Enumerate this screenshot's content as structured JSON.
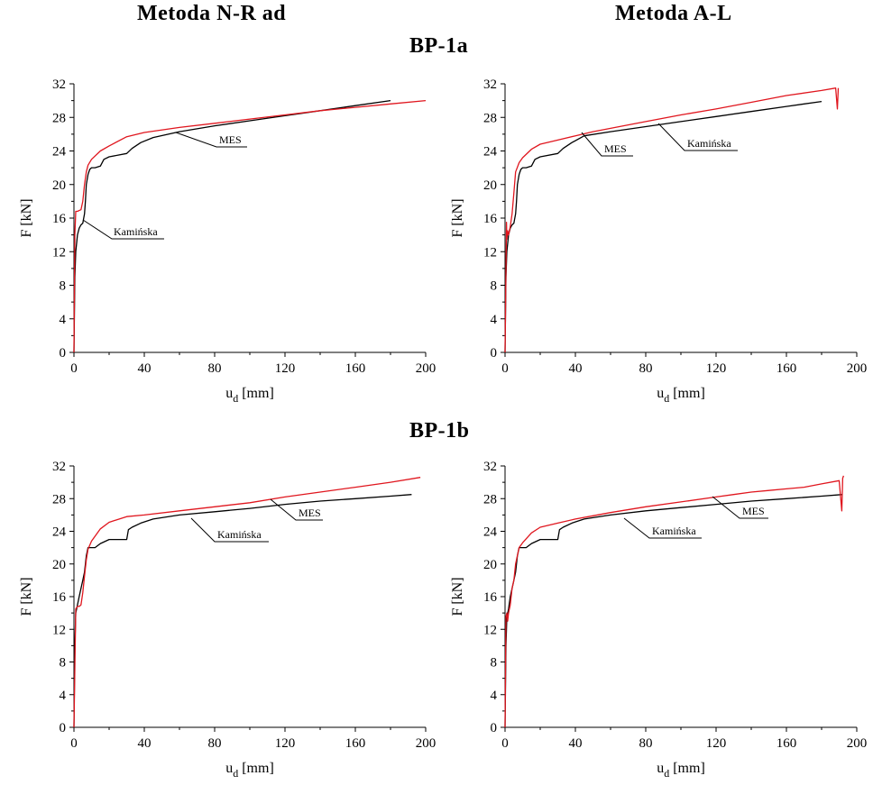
{
  "headers": {
    "left": "Metoda N-R ad",
    "right": "Metoda A-L"
  },
  "groups": [
    {
      "title": "BP-1a"
    },
    {
      "title": "BP-1b"
    }
  ],
  "colors": {
    "mes": "#e0161e",
    "kaminska": "#000000"
  },
  "chart_data": [
    {
      "type": "line",
      "group": "BP-1a",
      "method": "Metoda N-R ad",
      "xlabel_main": "u",
      "xlabel_sub": "d",
      "xlabel_unit": " [mm]",
      "ylabel": "F [kN]",
      "xlim": [
        0,
        200
      ],
      "ylim": [
        0,
        32
      ],
      "xticks": [
        "0",
        "40",
        "80",
        "120",
        "160",
        "200"
      ],
      "yticks": [
        "0",
        "4",
        "8",
        "12",
        "16",
        "20",
        "24",
        "28",
        "32"
      ],
      "series": [
        {
          "name": "Kamińska",
          "color": "#000000",
          "x": [
            0,
            0.5,
            1,
            2,
            3,
            4,
            5,
            6,
            6.5,
            7,
            8,
            9,
            10,
            12,
            15,
            17,
            20,
            30,
            33,
            38,
            45,
            60,
            80,
            100,
            120,
            140,
            160,
            180
          ],
          "y": [
            0,
            9,
            12,
            14,
            14.8,
            15.2,
            15.4,
            16.5,
            18,
            20,
            21.2,
            21.8,
            22,
            22,
            22.2,
            23,
            23.3,
            23.7,
            24.3,
            25,
            25.6,
            26.3,
            27,
            27.6,
            28.2,
            28.8,
            29.4,
            30
          ]
        },
        {
          "name": "MES",
          "color": "#e0161e",
          "x": [
            0,
            0.5,
            1,
            2,
            3,
            4,
            5,
            6,
            7,
            8,
            10,
            15,
            20,
            30,
            40,
            60,
            80,
            100,
            120,
            140,
            160,
            180,
            200
          ],
          "y": [
            0,
            14,
            16.8,
            16.8,
            16.9,
            17,
            18,
            20,
            21.5,
            22.3,
            23,
            24,
            24.6,
            25.7,
            26.2,
            26.8,
            27.3,
            27.8,
            28.3,
            28.8,
            29.2,
            29.6,
            30
          ]
        }
      ],
      "annotations": [
        "MES",
        "Kamińska"
      ]
    },
    {
      "type": "line",
      "group": "BP-1a",
      "method": "Metoda A-L",
      "xlabel_main": "u",
      "xlabel_sub": "d",
      "xlabel_unit": " [mm]",
      "ylabel": "F [kN]",
      "xlim": [
        0,
        200
      ],
      "ylim": [
        0,
        32
      ],
      "xticks": [
        "0",
        "40",
        "80",
        "120",
        "160",
        "200"
      ],
      "yticks": [
        "0",
        "4",
        "8",
        "12",
        "16",
        "20",
        "24",
        "28",
        "32"
      ],
      "series": [
        {
          "name": "Kamińska",
          "color": "#000000",
          "x": [
            0,
            0.5,
            1,
            2,
            3,
            4,
            5,
            6,
            6.5,
            7,
            8,
            9,
            10,
            12,
            15,
            17,
            20,
            30,
            33,
            38,
            45,
            60,
            80,
            100,
            120,
            140,
            160,
            180
          ],
          "y": [
            0,
            9,
            12,
            14,
            14.8,
            15.2,
            15.4,
            16.5,
            18,
            20,
            21.2,
            21.8,
            22,
            22,
            22.2,
            23,
            23.3,
            23.7,
            24.3,
            25,
            25.8,
            26.3,
            26.9,
            27.5,
            28.1,
            28.7,
            29.3,
            29.9
          ]
        },
        {
          "name": "MES",
          "color": "#e0161e",
          "x": [
            0,
            0.8,
            1,
            1.5,
            2,
            3,
            4,
            5,
            6,
            8,
            10,
            15,
            20,
            30,
            40,
            50,
            60,
            80,
            100,
            120,
            140,
            160,
            180,
            188,
            189,
            189.5
          ],
          "y": [
            0,
            15.5,
            13.5,
            14.5,
            14,
            15,
            16.5,
            19,
            21.5,
            22.6,
            23.2,
            24.2,
            24.8,
            25.3,
            25.8,
            26.3,
            26.7,
            27.5,
            28.3,
            29,
            29.8,
            30.6,
            31.2,
            31.5,
            29,
            31.5
          ]
        }
      ],
      "annotations": [
        "MES",
        "Kamińska"
      ]
    },
    {
      "type": "line",
      "group": "BP-1b",
      "method": "Metoda N-R ad",
      "xlabel_main": "u",
      "xlabel_sub": "d",
      "xlabel_unit": " [mm]",
      "ylabel": "F [kN]",
      "xlim": [
        0,
        200
      ],
      "ylim": [
        0,
        32
      ],
      "xticks": [
        "0",
        "40",
        "80",
        "120",
        "160",
        "200"
      ],
      "yticks": [
        "0",
        "4",
        "8",
        "12",
        "16",
        "20",
        "24",
        "28",
        "32"
      ],
      "series": [
        {
          "name": "Kamińska",
          "color": "#000000",
          "x": [
            0,
            0.5,
            1,
            2,
            3,
            4,
            5,
            6,
            7,
            8,
            10,
            12,
            15,
            20,
            25,
            30,
            31,
            33,
            38,
            45,
            60,
            80,
            100,
            120,
            140,
            160,
            180,
            192
          ],
          "y": [
            0,
            10,
            14,
            15,
            16,
            17,
            18,
            19,
            21,
            22,
            22,
            22,
            22.5,
            23,
            23,
            23,
            24.2,
            24.5,
            25,
            25.5,
            26,
            26.4,
            26.8,
            27.3,
            27.7,
            28,
            28.3,
            28.5
          ]
        },
        {
          "name": "MES",
          "color": "#e0161e",
          "x": [
            0,
            1,
            2,
            3,
            4,
            5,
            6,
            7,
            8,
            10,
            15,
            20,
            30,
            40,
            60,
            80,
            100,
            120,
            140,
            160,
            180,
            197
          ],
          "y": [
            0,
            14.5,
            14.8,
            14.8,
            15,
            16.5,
            18.5,
            20.5,
            21.8,
            22.8,
            24.3,
            25.1,
            25.8,
            26,
            26.5,
            27,
            27.5,
            28.2,
            28.8,
            29.4,
            30,
            30.6
          ]
        }
      ],
      "annotations": [
        "MES",
        "Kamińska"
      ]
    },
    {
      "type": "line",
      "group": "BP-1b",
      "method": "Metoda A-L",
      "xlabel_main": "u",
      "xlabel_sub": "d",
      "xlabel_unit": " [mm]",
      "ylabel": "F [kN]",
      "xlim": [
        0,
        200
      ],
      "ylim": [
        0,
        32
      ],
      "xticks": [
        "0",
        "40",
        "80",
        "120",
        "160",
        "200"
      ],
      "yticks": [
        "0",
        "4",
        "8",
        "12",
        "16",
        "20",
        "24",
        "28",
        "32"
      ],
      "series": [
        {
          "name": "Kamińska",
          "color": "#000000",
          "x": [
            0,
            0.5,
            1,
            2,
            3,
            4,
            5,
            6,
            7,
            8,
            10,
            12,
            15,
            20,
            25,
            30,
            31,
            33,
            38,
            45,
            60,
            80,
            100,
            120,
            140,
            160,
            180,
            192
          ],
          "y": [
            0,
            10,
            13.5,
            14.5,
            16,
            17,
            18,
            19,
            21,
            22,
            22,
            22,
            22.5,
            23,
            23,
            23,
            24.2,
            24.5,
            25,
            25.5,
            26,
            26.5,
            26.9,
            27.3,
            27.7,
            28,
            28.3,
            28.5
          ]
        },
        {
          "name": "MES",
          "color": "#e0161e",
          "x": [
            0,
            0.5,
            1,
            1.5,
            2,
            3,
            4,
            5,
            6,
            8,
            10,
            15,
            20,
            30,
            40,
            50,
            60,
            80,
            100,
            120,
            130,
            140,
            150,
            160,
            170,
            180,
            190,
            191.5,
            192,
            192.5
          ],
          "y": [
            0,
            13.5,
            14,
            13,
            14,
            15,
            17,
            18,
            20,
            22,
            22.6,
            23.8,
            24.5,
            25,
            25.5,
            25.9,
            26.3,
            27,
            27.6,
            28.2,
            28.5,
            28.8,
            29,
            29.2,
            29.4,
            29.8,
            30.2,
            26.5,
            30.5,
            30.8
          ]
        }
      ],
      "annotations": [
        "MES",
        "Kamińska"
      ]
    }
  ]
}
